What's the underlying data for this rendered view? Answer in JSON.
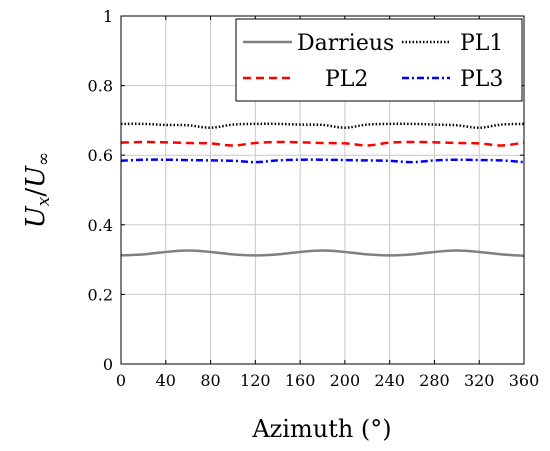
{
  "chart_data": {
    "type": "line",
    "title": "",
    "xlabel": "Azimuth (°)",
    "ylabel": "U_x/U_∞",
    "ylabel_parts": {
      "u1": "U",
      "s1": "x",
      "slash": "/",
      "u2": "U",
      "s2": "∞"
    },
    "xlim": [
      0,
      360
    ],
    "ylim": [
      0,
      1
    ],
    "xticks": [
      "0",
      "40",
      "80",
      "120",
      "160",
      "200",
      "240",
      "280",
      "320",
      "360"
    ],
    "yticks": [
      "0",
      "0.2",
      "0.4",
      "0.6",
      "0.8",
      "1"
    ],
    "grid": true,
    "legend_position": "top-right",
    "series": [
      {
        "name": "Darrieus",
        "color": "#808080",
        "style": "solid",
        "x": [
          0,
          20,
          40,
          60,
          80,
          100,
          120,
          140,
          160,
          180,
          200,
          220,
          240,
          260,
          280,
          300,
          320,
          340,
          360
        ],
        "y": [
          0.312,
          0.315,
          0.322,
          0.326,
          0.322,
          0.315,
          0.312,
          0.315,
          0.322,
          0.326,
          0.322,
          0.315,
          0.312,
          0.315,
          0.322,
          0.326,
          0.322,
          0.315,
          0.311
        ]
      },
      {
        "name": "PL1",
        "color": "#000000",
        "style": "dotted",
        "x": [
          0,
          20,
          40,
          60,
          80,
          100,
          120,
          140,
          160,
          180,
          200,
          220,
          240,
          260,
          280,
          300,
          320,
          340,
          360
        ],
        "y": [
          0.69,
          0.69,
          0.687,
          0.686,
          0.679,
          0.688,
          0.69,
          0.69,
          0.688,
          0.687,
          0.679,
          0.688,
          0.69,
          0.69,
          0.688,
          0.686,
          0.679,
          0.688,
          0.69
        ]
      },
      {
        "name": "PL2",
        "color": "#ff0000",
        "style": "dashed",
        "x": [
          0,
          20,
          40,
          60,
          80,
          100,
          120,
          140,
          160,
          180,
          200,
          220,
          240,
          260,
          280,
          300,
          320,
          340,
          360
        ],
        "y": [
          0.636,
          0.638,
          0.637,
          0.635,
          0.634,
          0.628,
          0.635,
          0.638,
          0.637,
          0.635,
          0.634,
          0.628,
          0.636,
          0.638,
          0.637,
          0.635,
          0.634,
          0.628,
          0.636
        ]
      },
      {
        "name": "PL3",
        "color": "#0000ff",
        "style": "dashdot",
        "x": [
          0,
          20,
          40,
          60,
          80,
          100,
          120,
          140,
          160,
          180,
          200,
          220,
          240,
          260,
          280,
          300,
          320,
          340,
          360
        ],
        "y": [
          0.584,
          0.587,
          0.587,
          0.586,
          0.585,
          0.584,
          0.58,
          0.585,
          0.587,
          0.587,
          0.586,
          0.585,
          0.584,
          0.58,
          0.585,
          0.587,
          0.586,
          0.585,
          0.58
        ]
      }
    ]
  }
}
